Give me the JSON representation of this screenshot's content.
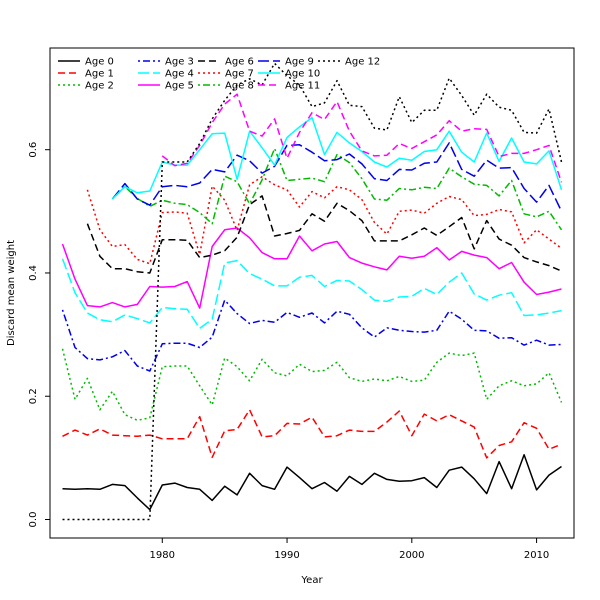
{
  "chart_data": {
    "type": "line",
    "title": "",
    "xlabel": "Year",
    "ylabel": "Discard mean weight",
    "xlim": [
      1971,
      2013
    ],
    "ylim": [
      -0.03,
      0.765
    ],
    "x_ticks": [
      1980,
      1990,
      2000,
      2010
    ],
    "y_ticks": [
      0.0,
      0.2,
      0.4,
      0.6
    ],
    "x_tick_labels": [
      "1980",
      "1990",
      "2000",
      "2010"
    ],
    "y_tick_labels": [
      "0.0",
      "0.2",
      "0.4",
      "0.6"
    ],
    "grid": false,
    "legend_position": "top-left",
    "series": [
      {
        "name": "Age 0",
        "color": "#000000",
        "dash": "solid",
        "x": [
          1972,
          1973,
          1974,
          1975,
          1976,
          1977,
          1978,
          1979,
          1980,
          1981,
          1982,
          1983,
          1984,
          1985,
          1986,
          1987,
          1988,
          1989,
          1990,
          1991,
          1992,
          1993,
          1994,
          1995,
          1996,
          1997,
          1998,
          1999,
          2000,
          2001,
          2002,
          2003,
          2004,
          2005,
          2006,
          2007,
          2008,
          2009,
          2010,
          2011,
          2012
        ],
        "y": [
          0.05,
          0.049,
          0.05,
          0.049,
          0.057,
          0.055,
          0.035,
          0.016,
          0.056,
          0.059,
          0.052,
          0.049,
          0.031,
          0.054,
          0.04,
          0.075,
          0.055,
          0.049,
          0.085,
          0.068,
          0.05,
          0.06,
          0.046,
          0.07,
          0.057,
          0.075,
          0.065,
          0.062,
          0.063,
          0.068,
          0.052,
          0.08,
          0.085,
          0.066,
          0.042,
          0.094,
          0.05,
          0.105,
          0.048,
          0.072,
          0.086
        ]
      },
      {
        "name": "Age 1",
        "color": "#ff0000",
        "dash": "dashed",
        "x": [
          1972,
          1973,
          1974,
          1975,
          1976,
          1977,
          1978,
          1979,
          1980,
          1981,
          1982,
          1983,
          1984,
          1985,
          1986,
          1987,
          1988,
          1989,
          1990,
          1991,
          1992,
          1993,
          1994,
          1995,
          1996,
          1997,
          1998,
          1999,
          2000,
          2001,
          2002,
          2003,
          2004,
          2005,
          2006,
          2007,
          2008,
          2009,
          2010,
          2011,
          2012
        ],
        "y": [
          0.135,
          0.145,
          0.137,
          0.147,
          0.137,
          0.136,
          0.135,
          0.137,
          0.131,
          0.131,
          0.131,
          0.167,
          0.101,
          0.144,
          0.146,
          0.178,
          0.134,
          0.136,
          0.156,
          0.155,
          0.166,
          0.134,
          0.136,
          0.145,
          0.143,
          0.143,
          0.158,
          0.176,
          0.136,
          0.171,
          0.16,
          0.17,
          0.16,
          0.15,
          0.1,
          0.12,
          0.126,
          0.157,
          0.148,
          0.114,
          0.122
        ]
      },
      {
        "name": "Age 2",
        "color": "#00bb00",
        "dash": "dotted",
        "x": [
          1972,
          1973,
          1974,
          1975,
          1976,
          1977,
          1978,
          1979,
          1980,
          1981,
          1982,
          1983,
          1984,
          1985,
          1986,
          1987,
          1988,
          1989,
          1990,
          1991,
          1992,
          1993,
          1994,
          1995,
          1996,
          1997,
          1998,
          1999,
          2000,
          2001,
          2002,
          2003,
          2004,
          2005,
          2006,
          2007,
          2008,
          2009,
          2010,
          2011,
          2012
        ],
        "y": [
          0.277,
          0.195,
          0.229,
          0.178,
          0.208,
          0.17,
          0.161,
          0.165,
          0.248,
          0.249,
          0.249,
          0.217,
          0.186,
          0.262,
          0.248,
          0.225,
          0.26,
          0.238,
          0.233,
          0.252,
          0.24,
          0.242,
          0.255,
          0.23,
          0.224,
          0.228,
          0.225,
          0.232,
          0.224,
          0.226,
          0.255,
          0.27,
          0.266,
          0.27,
          0.195,
          0.217,
          0.225,
          0.217,
          0.22,
          0.238,
          0.19
        ]
      },
      {
        "name": "Age 3",
        "color": "#0000ee",
        "dash": "dotdash",
        "x": [
          1972,
          1973,
          1974,
          1975,
          1976,
          1977,
          1978,
          1979,
          1980,
          1981,
          1982,
          1983,
          1984,
          1985,
          1986,
          1987,
          1988,
          1989,
          1990,
          1991,
          1992,
          1993,
          1994,
          1995,
          1996,
          1997,
          1998,
          1999,
          2000,
          2001,
          2002,
          2003,
          2004,
          2005,
          2006,
          2007,
          2008,
          2009,
          2010,
          2011,
          2012
        ],
        "y": [
          0.34,
          0.279,
          0.261,
          0.259,
          0.264,
          0.274,
          0.249,
          0.241,
          0.285,
          0.286,
          0.286,
          0.279,
          0.296,
          0.356,
          0.334,
          0.318,
          0.323,
          0.32,
          0.336,
          0.328,
          0.335,
          0.319,
          0.338,
          0.333,
          0.311,
          0.296,
          0.311,
          0.307,
          0.305,
          0.304,
          0.307,
          0.338,
          0.325,
          0.307,
          0.306,
          0.294,
          0.295,
          0.283,
          0.291,
          0.283,
          0.284
        ]
      },
      {
        "name": "Age 4",
        "color": "#00ffff",
        "dash": "longdash",
        "x": [
          1972,
          1973,
          1974,
          1975,
          1976,
          1977,
          1978,
          1979,
          1980,
          1981,
          1982,
          1983,
          1984,
          1985,
          1986,
          1987,
          1988,
          1989,
          1990,
          1991,
          1992,
          1993,
          1994,
          1995,
          1996,
          1997,
          1998,
          1999,
          2000,
          2001,
          2002,
          2003,
          2004,
          2005,
          2006,
          2007,
          2008,
          2009,
          2010,
          2011,
          2012
        ],
        "y": [
          0.423,
          0.368,
          0.335,
          0.324,
          0.321,
          0.332,
          0.326,
          0.319,
          0.344,
          0.342,
          0.341,
          0.31,
          0.325,
          0.416,
          0.42,
          0.399,
          0.39,
          0.379,
          0.379,
          0.393,
          0.396,
          0.378,
          0.388,
          0.387,
          0.373,
          0.356,
          0.354,
          0.361,
          0.362,
          0.375,
          0.365,
          0.385,
          0.4,
          0.366,
          0.356,
          0.364,
          0.368,
          0.331,
          0.332,
          0.335,
          0.339
        ]
      },
      {
        "name": "Age 5",
        "color": "#ff00ff",
        "dash": "solid",
        "x": [
          1972,
          1973,
          1974,
          1975,
          1976,
          1977,
          1978,
          1979,
          1980,
          1981,
          1982,
          1983,
          1984,
          1985,
          1986,
          1987,
          1988,
          1989,
          1990,
          1991,
          1992,
          1993,
          1994,
          1995,
          1996,
          1997,
          1998,
          1999,
          2000,
          2001,
          2002,
          2003,
          2004,
          2005,
          2006,
          2007,
          2008,
          2009,
          2010,
          2011,
          2012
        ],
        "y": [
          0.447,
          0.39,
          0.347,
          0.345,
          0.352,
          0.345,
          0.349,
          0.378,
          0.377,
          0.378,
          0.386,
          0.343,
          0.443,
          0.47,
          0.473,
          0.457,
          0.433,
          0.423,
          0.423,
          0.46,
          0.436,
          0.447,
          0.451,
          0.425,
          0.416,
          0.41,
          0.405,
          0.427,
          0.424,
          0.427,
          0.441,
          0.421,
          0.435,
          0.429,
          0.425,
          0.407,
          0.417,
          0.385,
          0.365,
          0.369,
          0.374
        ]
      },
      {
        "name": "Age 6",
        "color": "#000000",
        "dash": "dashed",
        "x": [
          1974,
          1975,
          1976,
          1977,
          1978,
          1979,
          1980,
          1981,
          1982,
          1983,
          1984,
          1985,
          1986,
          1987,
          1988,
          1989,
          1990,
          1991,
          1992,
          1993,
          1994,
          1995,
          1996,
          1997,
          1998,
          1999,
          2000,
          2001,
          2002,
          2003,
          2004,
          2005,
          2006,
          2007,
          2008,
          2009,
          2010,
          2011,
          2012
        ],
        "y": [
          0.48,
          0.427,
          0.407,
          0.407,
          0.402,
          0.4,
          0.454,
          0.454,
          0.453,
          0.425,
          0.429,
          0.436,
          0.458,
          0.511,
          0.525,
          0.46,
          0.464,
          0.469,
          0.496,
          0.484,
          0.513,
          0.501,
          0.485,
          0.452,
          0.452,
          0.452,
          0.462,
          0.473,
          0.461,
          0.475,
          0.49,
          0.439,
          0.485,
          0.455,
          0.445,
          0.425,
          0.418,
          0.412,
          0.403
        ]
      },
      {
        "name": "Age 7",
        "color": "#ff0000",
        "dash": "dotted",
        "x": [
          1974,
          1975,
          1976,
          1977,
          1978,
          1979,
          1980,
          1981,
          1982,
          1983,
          1984,
          1985,
          1986,
          1987,
          1988,
          1989,
          1990,
          1991,
          1992,
          1993,
          1994,
          1995,
          1996,
          1997,
          1998,
          1999,
          2000,
          2001,
          2002,
          2003,
          2004,
          2005,
          2006,
          2007,
          2008,
          2009,
          2010,
          2011,
          2012
        ],
        "y": [
          0.535,
          0.47,
          0.443,
          0.446,
          0.422,
          0.415,
          0.498,
          0.499,
          0.497,
          0.43,
          0.541,
          0.518,
          0.469,
          0.543,
          0.556,
          0.543,
          0.535,
          0.507,
          0.532,
          0.522,
          0.54,
          0.535,
          0.519,
          0.482,
          0.463,
          0.5,
          0.502,
          0.497,
          0.513,
          0.524,
          0.519,
          0.493,
          0.495,
          0.503,
          0.499,
          0.449,
          0.47,
          0.455,
          0.44
        ]
      },
      {
        "name": "Age 8",
        "color": "#00bb00",
        "dash": "dotdash",
        "x": [
          1976,
          1977,
          1978,
          1979,
          1980,
          1981,
          1982,
          1983,
          1984,
          1985,
          1986,
          1987,
          1988,
          1989,
          1990,
          1991,
          1992,
          1993,
          1994,
          1995,
          1996,
          1997,
          1998,
          1999,
          2000,
          2001,
          2002,
          2003,
          2004,
          2005,
          2006,
          2007,
          2008,
          2009,
          2010,
          2011,
          2012
        ],
        "y": [
          0.52,
          0.54,
          0.521,
          0.508,
          0.518,
          0.513,
          0.511,
          0.498,
          0.48,
          0.557,
          0.548,
          0.512,
          0.551,
          0.602,
          0.55,
          0.552,
          0.554,
          0.548,
          0.592,
          0.579,
          0.553,
          0.52,
          0.518,
          0.537,
          0.535,
          0.539,
          0.537,
          0.57,
          0.556,
          0.544,
          0.542,
          0.525,
          0.55,
          0.496,
          0.491,
          0.5,
          0.47
        ]
      },
      {
        "name": "Age 9",
        "color": "#0000ee",
        "dash": "longdash",
        "x": [
          1976,
          1977,
          1978,
          1979,
          1980,
          1981,
          1982,
          1983,
          1984,
          1985,
          1986,
          1987,
          1988,
          1989,
          1990,
          1991,
          1992,
          1993,
          1994,
          1995,
          1996,
          1997,
          1998,
          1999,
          2000,
          2001,
          2002,
          2003,
          2004,
          2005,
          2006,
          2007,
          2008,
          2009,
          2010,
          2011,
          2012
        ],
        "y": [
          0.52,
          0.545,
          0.52,
          0.51,
          0.54,
          0.542,
          0.54,
          0.546,
          0.568,
          0.564,
          0.591,
          0.582,
          0.562,
          0.573,
          0.607,
          0.608,
          0.596,
          0.582,
          0.584,
          0.593,
          0.577,
          0.553,
          0.55,
          0.568,
          0.567,
          0.578,
          0.58,
          0.611,
          0.568,
          0.557,
          0.583,
          0.57,
          0.571,
          0.537,
          0.515,
          0.542,
          0.5
        ]
      },
      {
        "name": "Age 10",
        "color": "#00ffff",
        "dash": "solid",
        "x": [
          1976,
          1977,
          1978,
          1979,
          1980,
          1981,
          1982,
          1983,
          1984,
          1985,
          1986,
          1987,
          1988,
          1989,
          1990,
          1991,
          1992,
          1993,
          1994,
          1995,
          1996,
          1997,
          1998,
          1999,
          2000,
          2001,
          2002,
          2003,
          2004,
          2005,
          2006,
          2007,
          2008,
          2009,
          2010,
          2011,
          2012
        ],
        "y": [
          0.52,
          0.54,
          0.53,
          0.533,
          0.58,
          0.575,
          0.575,
          0.6,
          0.626,
          0.627,
          0.552,
          0.63,
          0.603,
          0.575,
          0.62,
          0.637,
          0.652,
          0.592,
          0.628,
          0.611,
          0.597,
          0.58,
          0.572,
          0.586,
          0.583,
          0.597,
          0.6,
          0.63,
          0.596,
          0.58,
          0.627,
          0.581,
          0.619,
          0.58,
          0.577,
          0.598,
          0.535
        ]
      },
      {
        "name": "Age 11",
        "color": "#ff00ff",
        "dash": "dashed",
        "x": [
          1980,
          1981,
          1982,
          1983,
          1984,
          1985,
          1986,
          1987,
          1988,
          1989,
          1990,
          1991,
          1992,
          1993,
          1994,
          1995,
          1996,
          1997,
          1998,
          1999,
          2000,
          2001,
          2002,
          2003,
          2004,
          2005,
          2006,
          2007,
          2008,
          2009,
          2010,
          2011,
          2012
        ],
        "y": [
          0.59,
          0.574,
          0.578,
          0.607,
          0.644,
          0.674,
          0.69,
          0.63,
          0.622,
          0.65,
          0.586,
          0.628,
          0.66,
          0.649,
          0.678,
          0.63,
          0.598,
          0.59,
          0.591,
          0.61,
          0.602,
          0.613,
          0.624,
          0.647,
          0.63,
          0.634,
          0.633,
          0.589,
          0.594,
          0.594,
          0.6,
          0.607,
          0.547
        ]
      },
      {
        "name": "Age 12",
        "color": "#000000",
        "dash": "dotted",
        "x": [
          1972,
          1973,
          1974,
          1975,
          1976,
          1977,
          1978,
          1979,
          1980,
          1981,
          1982,
          1983,
          1984,
          1985,
          1986,
          1987,
          1988,
          1989,
          1990,
          1991,
          1992,
          1993,
          1994,
          1995,
          1996,
          1997,
          1998,
          1999,
          2000,
          2001,
          2002,
          2003,
          2004,
          2005,
          2006,
          2007,
          2008,
          2009,
          2010,
          2011,
          2012
        ],
        "y": [
          0.0,
          0.0,
          0.0,
          0.0,
          0.0,
          0.0,
          0.0,
          0.0,
          0.58,
          0.58,
          0.58,
          0.61,
          0.65,
          0.68,
          0.705,
          0.715,
          0.705,
          0.74,
          0.72,
          0.705,
          0.67,
          0.676,
          0.712,
          0.672,
          0.67,
          0.635,
          0.632,
          0.686,
          0.644,
          0.664,
          0.664,
          0.716,
          0.688,
          0.656,
          0.69,
          0.669,
          0.664,
          0.628,
          0.627,
          0.666,
          0.58
        ]
      }
    ]
  }
}
